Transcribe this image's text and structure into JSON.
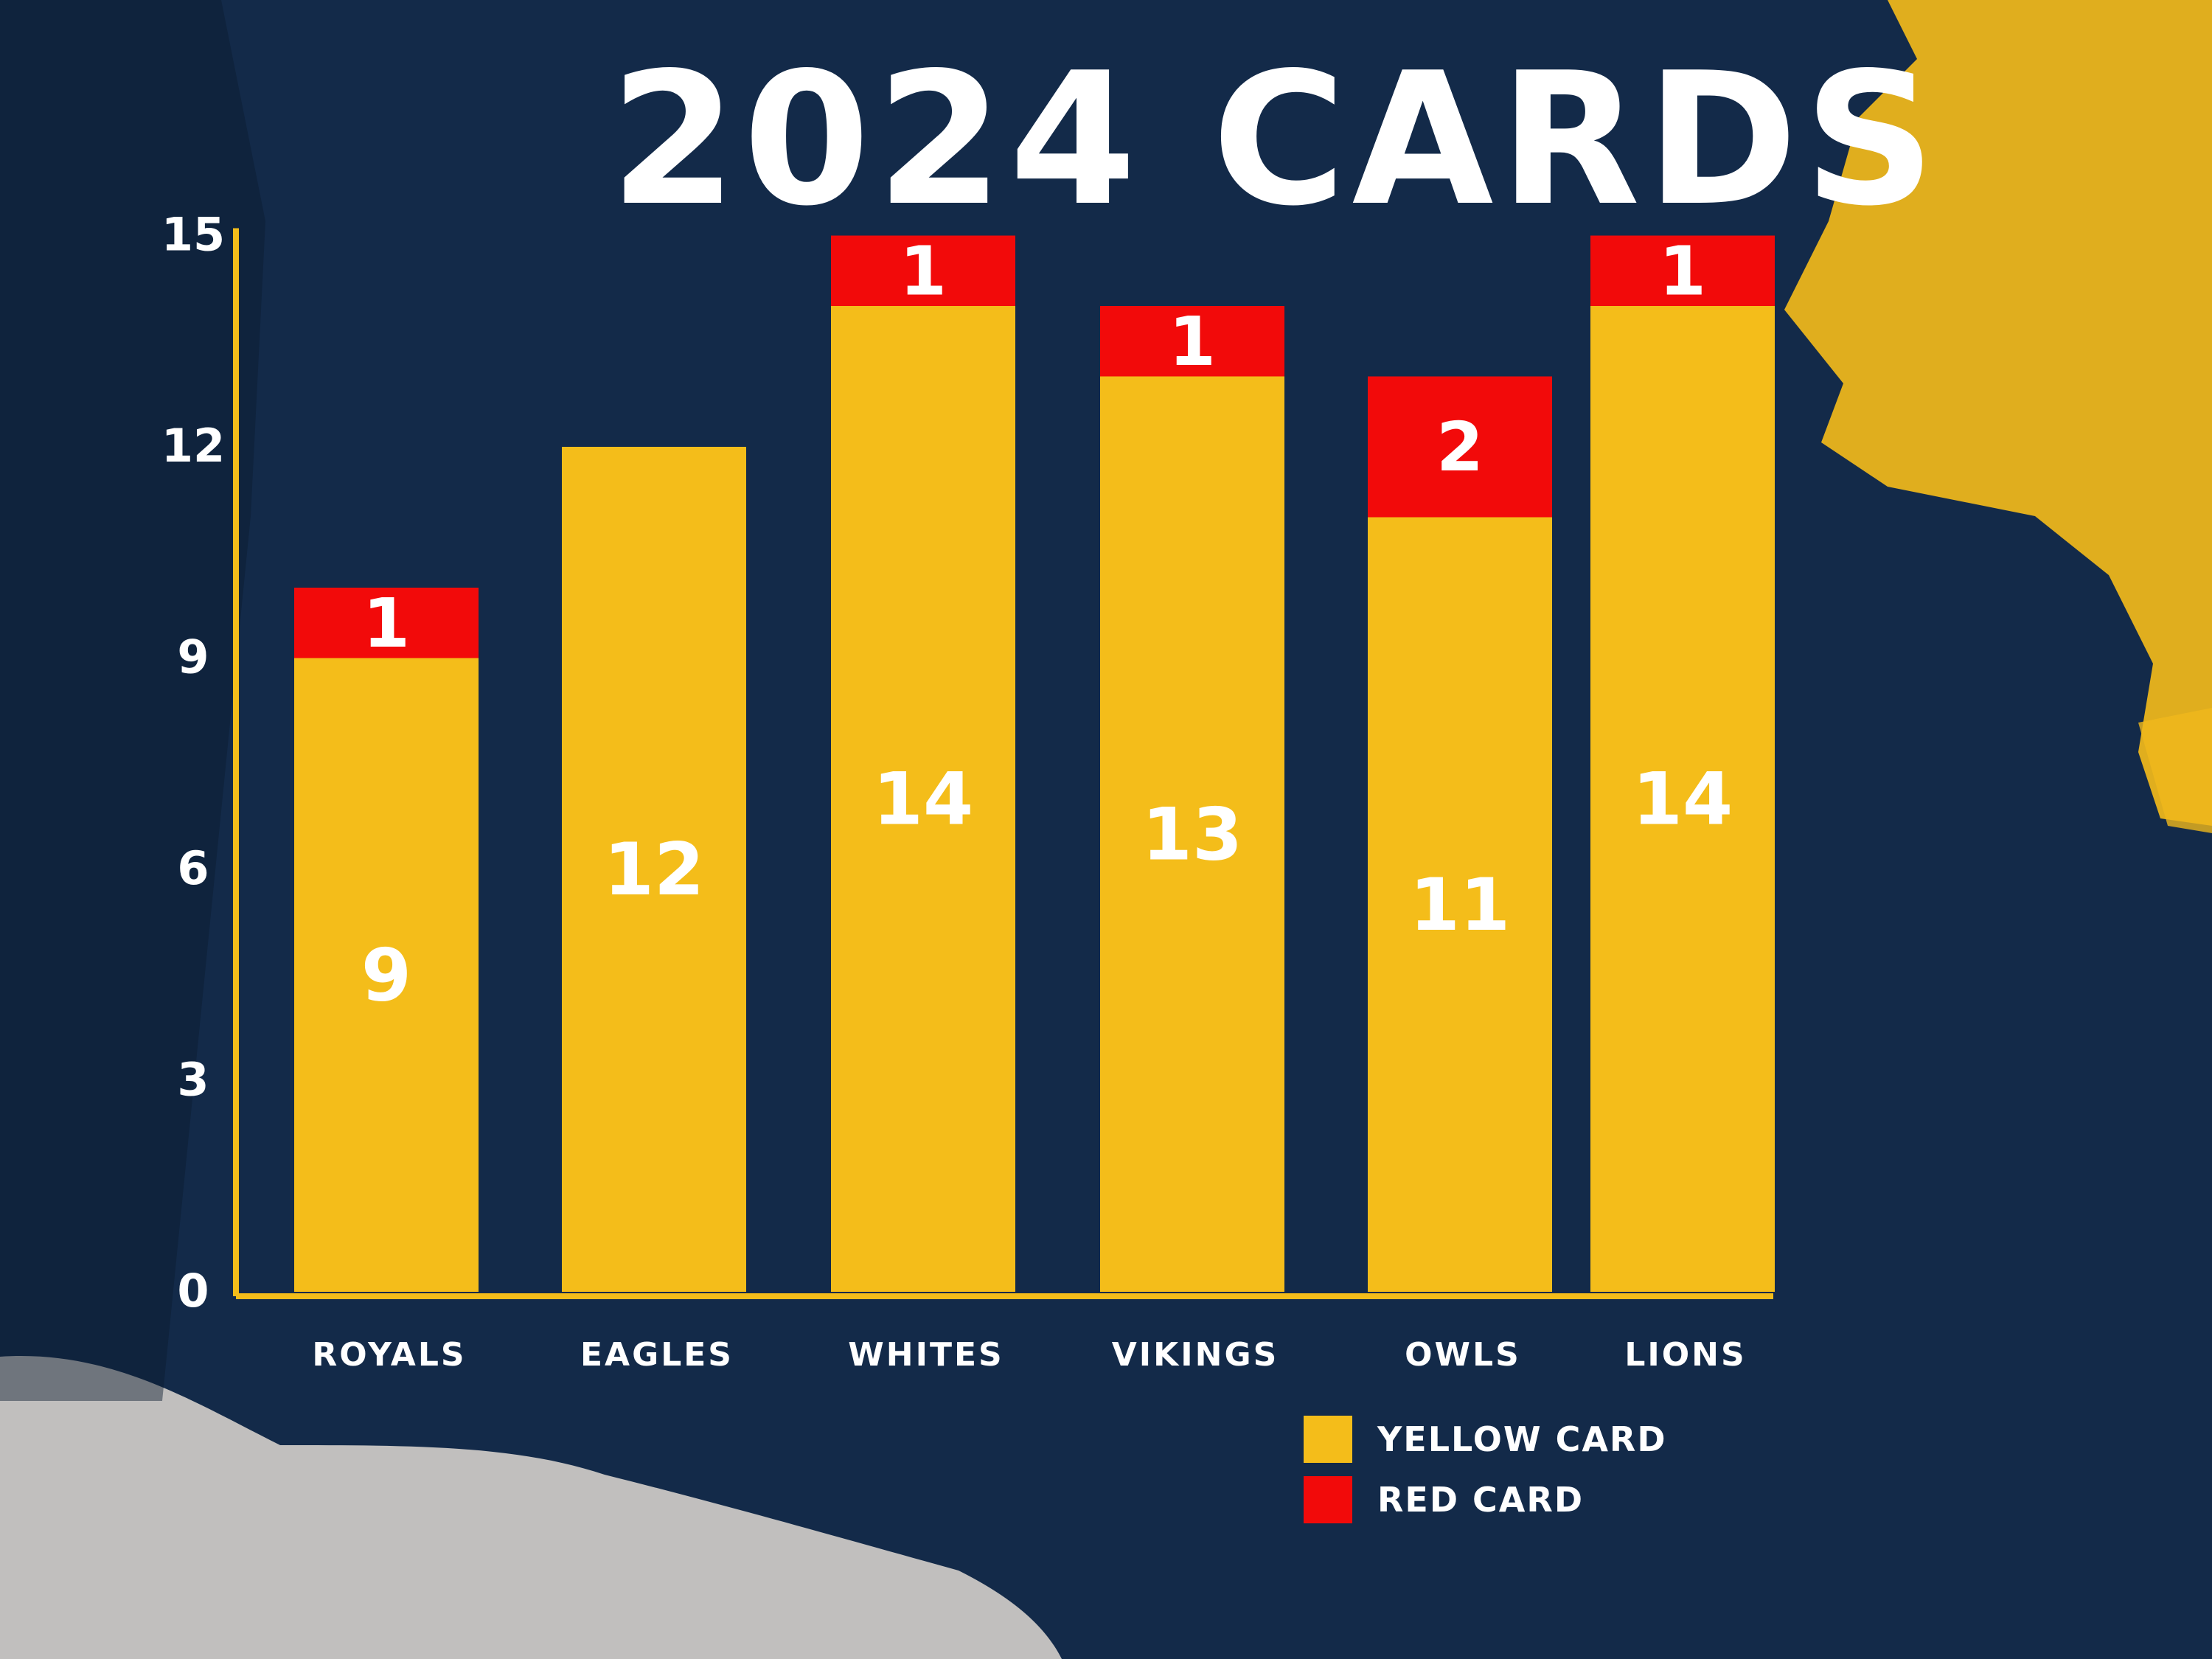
{
  "chart_data": {
    "type": "bar",
    "stacked": true,
    "title": "2024 CARDS",
    "categories": [
      "ROYALS",
      "EAGLES",
      "WHITES",
      "VIKINGS",
      "OWLS",
      "LIONS"
    ],
    "series": [
      {
        "name": "YELLOW CARD",
        "color": "#f4bd1a",
        "values": [
          9,
          12,
          14,
          13,
          11,
          14
        ],
        "labels": [
          "9",
          "12",
          "14",
          "13",
          "11",
          "14"
        ]
      },
      {
        "name": "RED CARD",
        "color": "#f20a0a",
        "values": [
          1,
          0,
          1,
          1,
          2,
          1
        ],
        "labels": [
          "1",
          "",
          "1",
          "1",
          "2",
          "1"
        ]
      }
    ],
    "yticks": [
      "0",
      "3",
      "6",
      "9",
      "12",
      "15"
    ],
    "ylim": [
      0,
      15
    ],
    "legend_position": "bottom-right",
    "colors": {
      "background": "#132a49",
      "axis": "#f4bd1a",
      "text": "#ffffff"
    }
  }
}
